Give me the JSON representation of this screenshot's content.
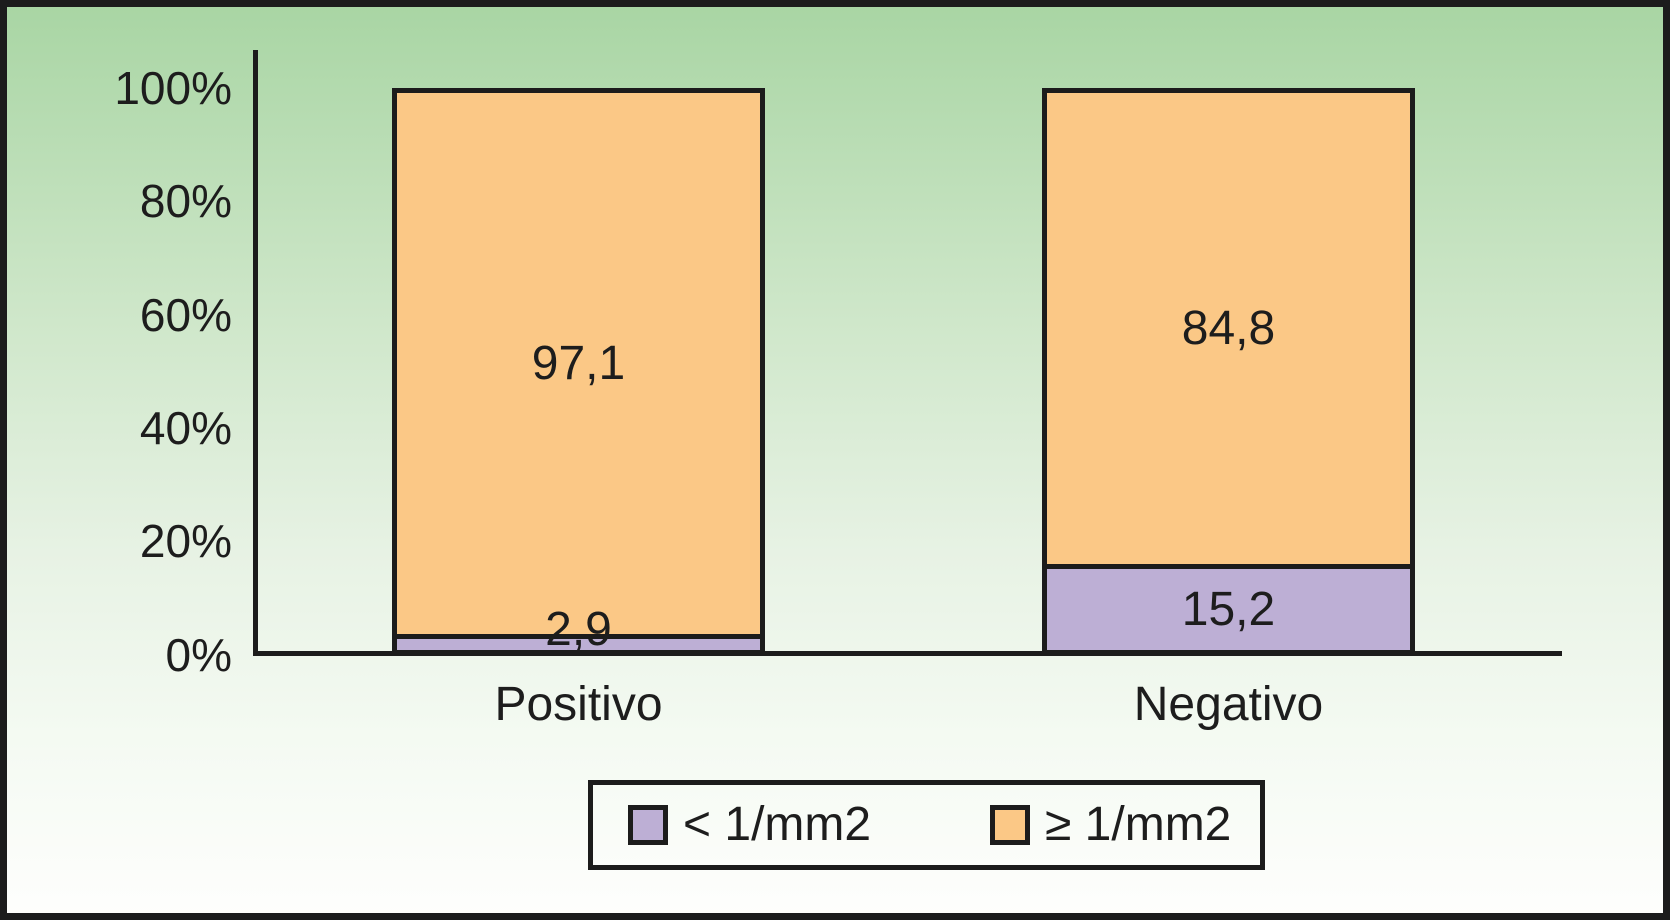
{
  "chart_data": {
    "type": "bar",
    "subtype": "stacked-100-percent",
    "categories": [
      "Positivo",
      "Negativo"
    ],
    "series": [
      {
        "name": "< 1/mm2",
        "color": "#bdafd5",
        "values": [
          2.9,
          15.2
        ],
        "value_labels": [
          "2,9",
          "15,2"
        ]
      },
      {
        "name": "≥ 1/mm2",
        "color": "#fbc886",
        "values": [
          97.1,
          84.8
        ],
        "value_labels": [
          "97,1",
          "84,8"
        ]
      }
    ],
    "yticks": [
      "100%",
      "80%",
      "60%",
      "40%",
      "20%",
      "0%"
    ],
    "ylim": [
      0,
      100
    ],
    "grid": false,
    "legend_position": "bottom",
    "background_top_color": "#a8d5a3",
    "background_bottom_color": "#fefefd",
    "axis_color": "#1c1c1c"
  }
}
